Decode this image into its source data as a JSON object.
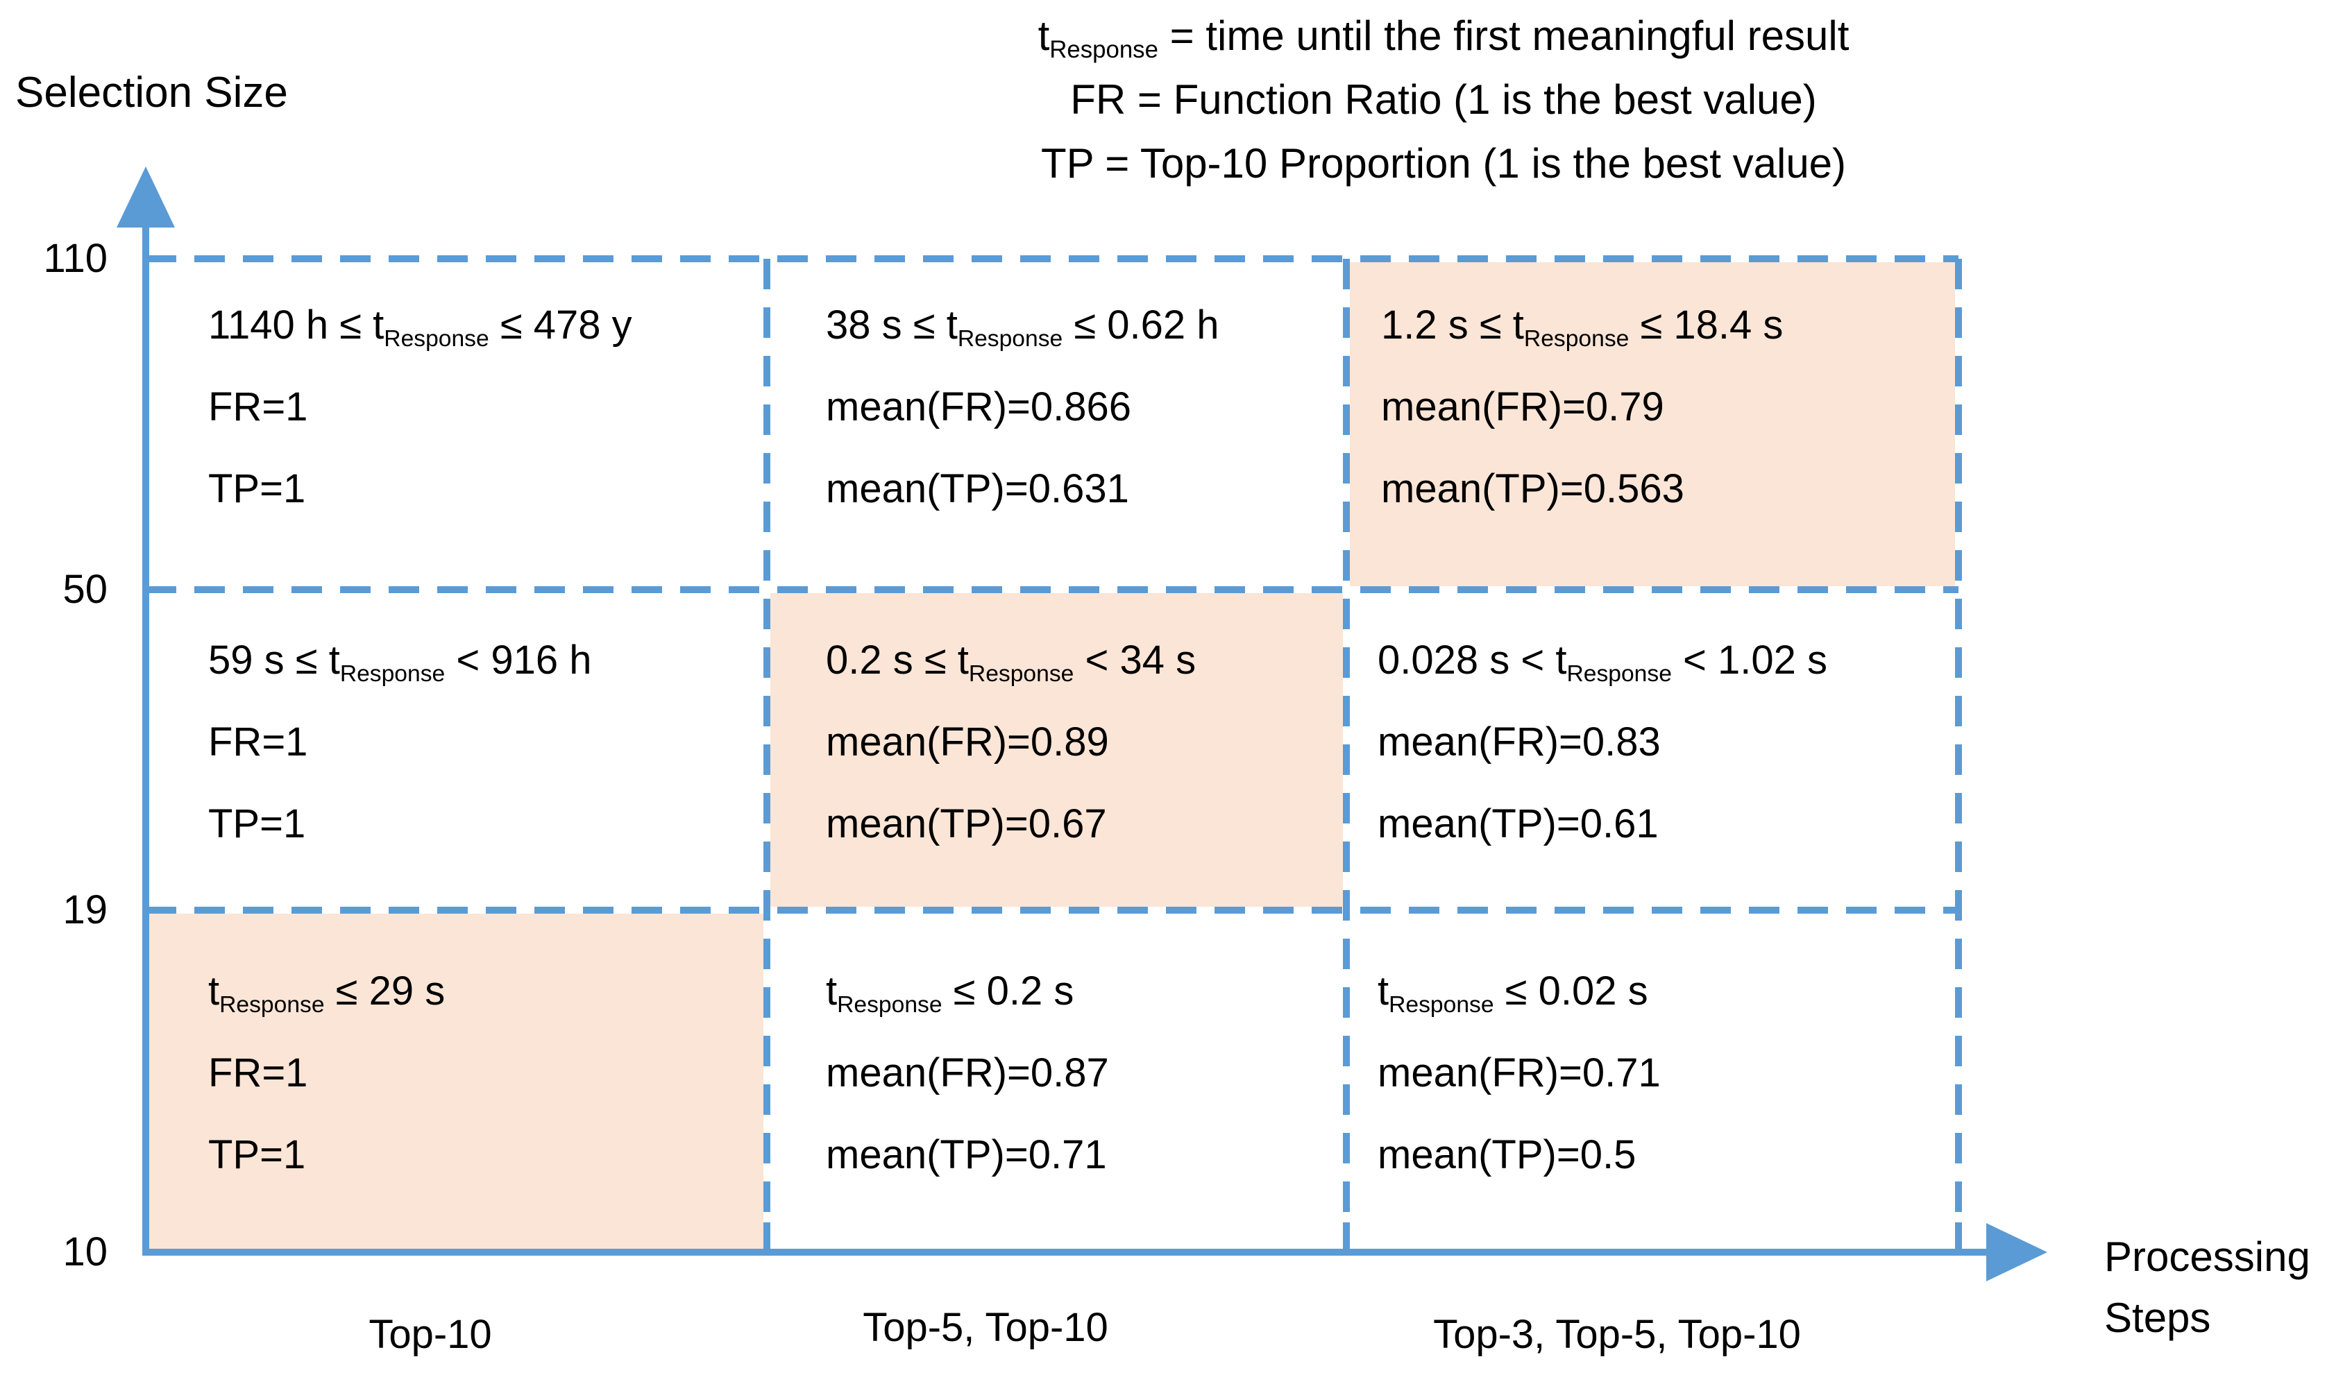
{
  "legend": {
    "lines": [
      "t_{Response} = time until the first meaningful result",
      "FR = Function Ratio (1 is the best value)",
      "TP = Top-10 Proportion (1 is the best value)"
    ]
  },
  "y_axis": {
    "title": "Selection Size",
    "ticks": [
      "110",
      "50",
      "19",
      "10"
    ]
  },
  "x_axis": {
    "title_line1": "Processing",
    "title_line2": "Steps",
    "categories": [
      "Top-10",
      "Top-5, Top-10",
      "Top-3, Top-5, Top-10"
    ]
  },
  "colors": {
    "axis_blue": "#5b9bd5",
    "highlight_orange": "#fbe5d6",
    "text": "#000000",
    "background": "#ffffff"
  },
  "cells": [
    {
      "row": 0,
      "col": 0,
      "highlighted": false,
      "lines": [
        "1140 h ≤ t_{Response} ≤ 478 y",
        "FR=1",
        "TP=1"
      ]
    },
    {
      "row": 0,
      "col": 1,
      "highlighted": false,
      "lines": [
        "38 s ≤ t_{Response} ≤ 0.62 h",
        "mean(FR)=0.866",
        "mean(TP)=0.631"
      ]
    },
    {
      "row": 0,
      "col": 2,
      "highlighted": true,
      "lines": [
        "1.2 s ≤ t_{Response} ≤ 18.4 s",
        "mean(FR)=0.79",
        "mean(TP)=0.563"
      ]
    },
    {
      "row": 1,
      "col": 0,
      "highlighted": false,
      "lines": [
        "59 s ≤ t_{Response} < 916 h",
        "FR=1",
        "TP=1"
      ]
    },
    {
      "row": 1,
      "col": 1,
      "highlighted": true,
      "lines": [
        "0.2 s ≤ t_{Response} < 34 s",
        "mean(FR)=0.89",
        "mean(TP)=0.67"
      ]
    },
    {
      "row": 1,
      "col": 2,
      "highlighted": false,
      "lines": [
        "0.028 s < t_{Response} < 1.02 s",
        "mean(FR)=0.83",
        "mean(TP)=0.61"
      ]
    },
    {
      "row": 2,
      "col": 0,
      "highlighted": true,
      "lines": [
        "t_{Response} ≤ 29 s",
        "FR=1",
        "TP=1"
      ]
    },
    {
      "row": 2,
      "col": 1,
      "highlighted": false,
      "lines": [
        "t_{Response} ≤ 0.2 s",
        "mean(FR)=0.87",
        "mean(TP)=0.71"
      ]
    },
    {
      "row": 2,
      "col": 2,
      "highlighted": false,
      "lines": [
        "t_{Response} ≤ 0.02 s",
        "mean(FR)=0.71",
        "mean(TP)=0.5"
      ]
    }
  ]
}
